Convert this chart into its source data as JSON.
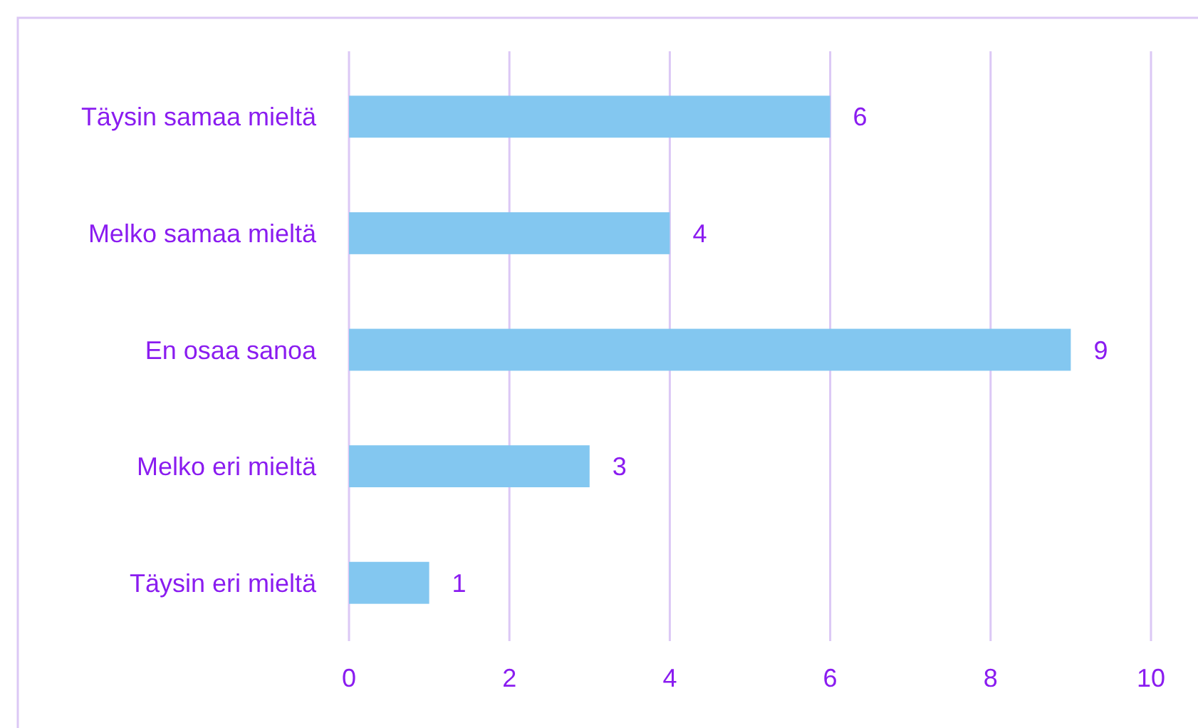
{
  "chart_data": {
    "type": "bar",
    "orientation": "horizontal",
    "categories": [
      "Täysin samaa mieltä",
      "Melko samaa mieltä",
      "En osaa sanoa",
      "Melko eri mieltä",
      "Täysin eri mieltä"
    ],
    "values": [
      6,
      4,
      9,
      3,
      1
    ],
    "color": "#83c7f0",
    "xlim": [
      0,
      10
    ],
    "xticks": [
      0,
      2,
      4,
      6,
      8,
      10
    ],
    "grid": "x",
    "data_labels": true
  }
}
